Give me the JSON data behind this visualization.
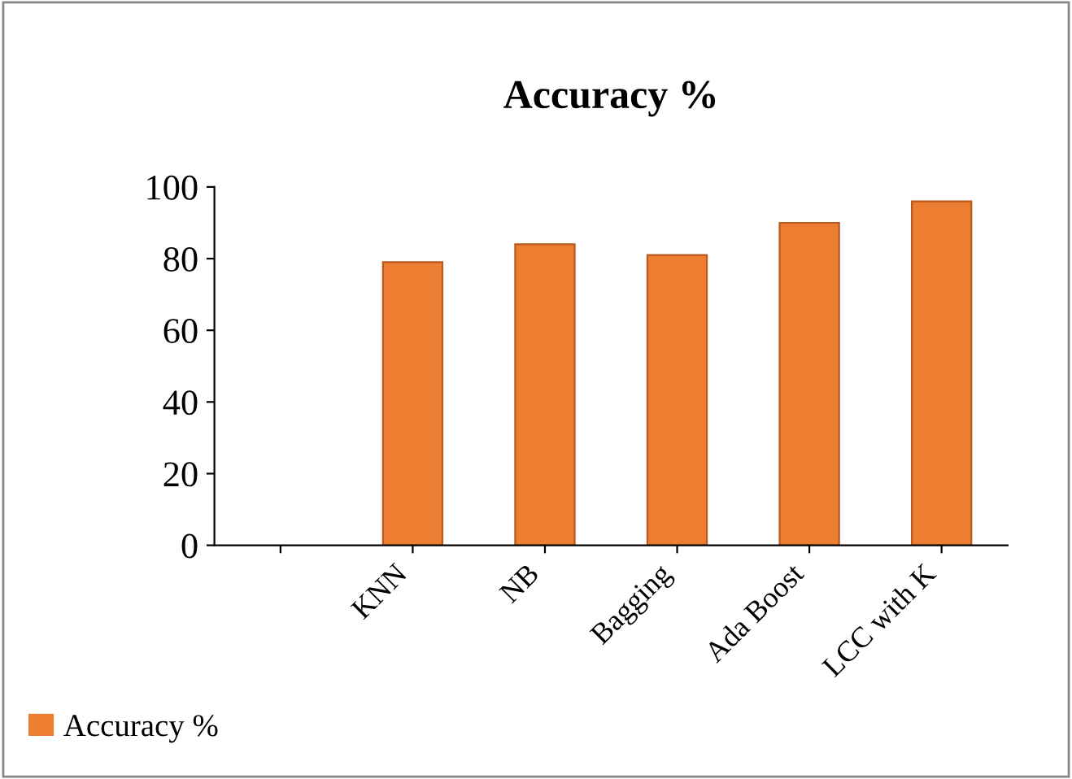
{
  "chart_data": {
    "type": "bar",
    "title": "Accuracy %",
    "categories": [
      null,
      "KNN",
      "NB",
      "Bagging",
      "Ada Boost",
      "LCC with K"
    ],
    "series": [
      {
        "name": "Accuracy %",
        "color": "#ed7d31",
        "values": [
          null,
          79,
          84,
          81,
          90,
          96
        ]
      }
    ],
    "ylim": [
      0,
      100
    ],
    "yticks": [
      0,
      20,
      40,
      60,
      80,
      100
    ],
    "grid": false,
    "legend": "bottom left"
  }
}
